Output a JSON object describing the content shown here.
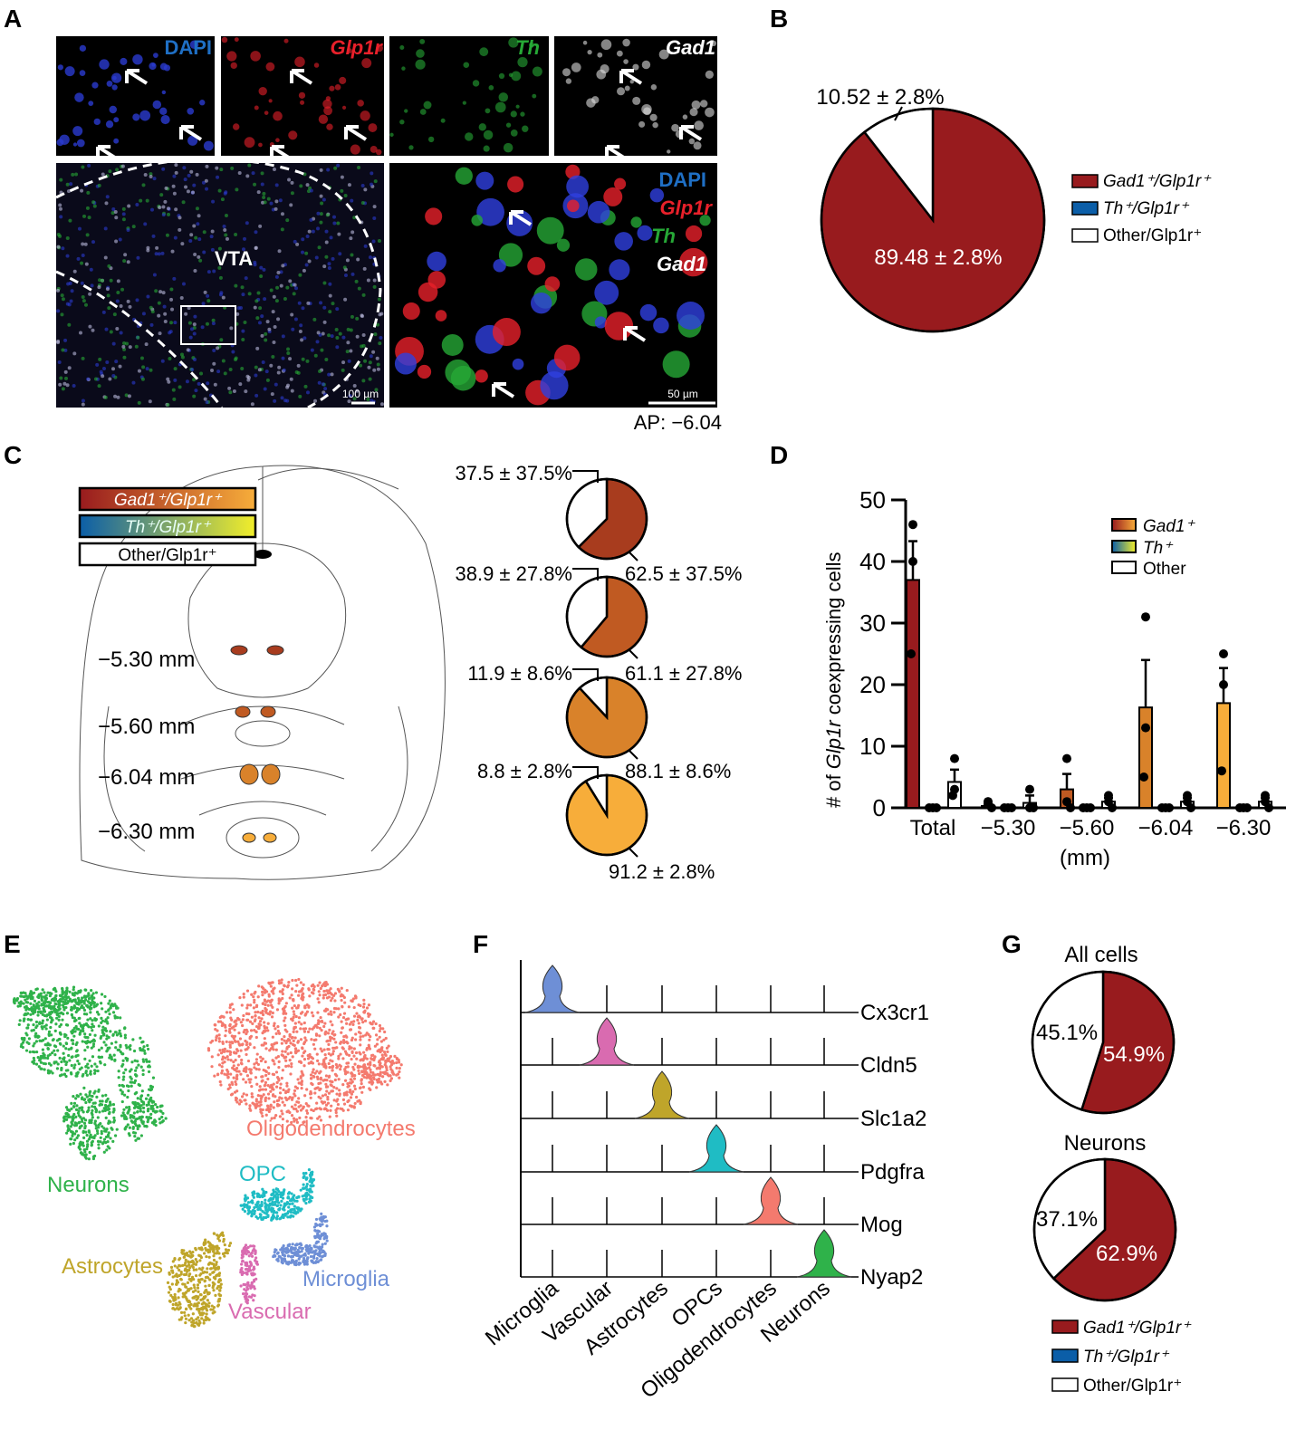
{
  "panel_labels": [
    "A",
    "B",
    "C",
    "D",
    "E",
    "F",
    "G"
  ],
  "panel_a": {
    "channels": [
      {
        "label": "DAPI",
        "color": "#1f6fc4"
      },
      {
        "label": "Glp1r",
        "color": "#e8202a"
      },
      {
        "label": "Th",
        "color": "#26a836"
      },
      {
        "label": "Gad1",
        "color": "#ffffff"
      }
    ],
    "region_label": "VTA",
    "scale_left": "100 µm",
    "scale_right": "50 µm",
    "ap_label": "AP: −6.04"
  },
  "chart_data": [
    {
      "panel": "B",
      "type": "pie",
      "slices": [
        {
          "name": "Gad1⁺/Glp1r⁺",
          "value": 89.48,
          "label": "89.48 ± 2.8%",
          "color": "#981b1e"
        },
        {
          "name": "Other/Glp1r⁺",
          "value": 10.52,
          "label": "10.52 ± 2.8%",
          "color": "#ffffff"
        }
      ],
      "legend": [
        {
          "label": "Gad1⁺/Glp1r⁺",
          "color": "#981b1e"
        },
        {
          "label": "Th⁺/Glp1r⁺",
          "color": "#0b5ea8"
        },
        {
          "label": "Other/Glp1r⁺",
          "color": "#ffffff"
        }
      ],
      "legend_placement": "right"
    },
    {
      "panel": "C",
      "type": "pie",
      "legend": [
        {
          "label": "Gad1⁺/Glp1r⁺",
          "gradient": [
            "#981b1e",
            "#f7ad3a"
          ]
        },
        {
          "label": "Th⁺/Glp1r⁺",
          "gradient": [
            "#0b5ea8",
            "#f2ee2a"
          ]
        },
        {
          "label": "Other/Glp1r⁺",
          "gradient": [
            "#ffffff",
            "#ffffff"
          ]
        }
      ],
      "sections": [
        {
          "level": "−5.30 mm",
          "gad1": 62.5,
          "gad1_label": "62.5 ± 37.5%",
          "other": 37.5,
          "other_label": "37.5 ± 37.5%",
          "color": "#a83c1e"
        },
        {
          "level": "−5.60 mm",
          "gad1": 61.1,
          "gad1_label": "61.1 ± 27.8%",
          "other": 38.9,
          "other_label": "38.9 ± 27.8%",
          "color": "#c05a22"
        },
        {
          "level": "−6.04 mm",
          "gad1": 88.1,
          "gad1_label": "88.1 ± 8.6%",
          "other": 11.9,
          "other_label": "11.9 ± 8.6%",
          "color": "#d9822a"
        },
        {
          "level": "−6.30 mm",
          "gad1": 91.2,
          "gad1_label": "91.2 ± 2.8%",
          "other": 8.8,
          "other_label": "8.8 ± 2.8%",
          "color": "#f7ad3a"
        }
      ]
    },
    {
      "panel": "D",
      "type": "bar",
      "ylabel_prefix": "# of ",
      "ylabel_gene": "Glp1r",
      "ylabel_suffix": " coexpressing cells",
      "xlabel": "(mm)",
      "ylim": [
        0,
        50
      ],
      "yticks": [
        "0",
        "10",
        "20",
        "30",
        "40",
        "50"
      ],
      "categories": [
        "Total",
        "−5.30",
        "−5.60",
        "−6.04",
        "−6.30"
      ],
      "gad1_colors": [
        "#981b1e",
        "#a83c1e",
        "#c05a22",
        "#d9822a",
        "#f7ad3a"
      ],
      "series": [
        {
          "name": "Gad1⁺",
          "values": [
            37,
            0.3,
            3,
            16.3,
            17
          ],
          "sem": [
            6.3,
            0.3,
            2.5,
            7.7,
            5.7
          ],
          "points": [
            [
              46,
              40,
              25
            ],
            [
              1,
              1,
              0
            ],
            [
              8,
              1,
              0
            ],
            [
              31,
              13,
              5
            ],
            [
              25,
              20,
              6
            ]
          ]
        },
        {
          "name": "Th⁺",
          "values": [
            0,
            0,
            0,
            0,
            0
          ],
          "sem": [
            0,
            0,
            0,
            0,
            0
          ],
          "points": [
            [
              0,
              0,
              0
            ],
            [
              0,
              0,
              0
            ],
            [
              0,
              0,
              0
            ],
            [
              0,
              0,
              0
            ],
            [
              0,
              0,
              0
            ]
          ]
        },
        {
          "name": "Other",
          "values": [
            4.2,
            0.8,
            1,
            1,
            1
          ],
          "sem": [
            2,
            1.2,
            0.6,
            0.6,
            0.6
          ],
          "points": [
            [
              8,
              3,
              2
            ],
            [
              3,
              0,
              0
            ],
            [
              2,
              1,
              0
            ],
            [
              2,
              1,
              0
            ],
            [
              2,
              1,
              0
            ]
          ]
        }
      ],
      "legend": [
        {
          "label": "Gad1⁺",
          "gradient": [
            "#981b1e",
            "#f7ad3a"
          ]
        },
        {
          "label": "Th⁺",
          "gradient": [
            "#0b5ea8",
            "#f2ee2a"
          ]
        },
        {
          "label": "Other",
          "gradient": [
            "#ffffff",
            "#ffffff"
          ]
        }
      ],
      "legend_placement": "top-right"
    },
    {
      "panel": "E",
      "type": "scatter",
      "clusters": [
        {
          "name": "Neurons",
          "color": "#2fb24a"
        },
        {
          "name": "Oligodendrocytes",
          "color": "#f47a6e"
        },
        {
          "name": "OPC",
          "color": "#1fbcc4"
        },
        {
          "name": "Astrocytes",
          "color": "#bfa52a"
        },
        {
          "name": "Vascular",
          "color": "#d96bb0"
        },
        {
          "name": "Microglia",
          "color": "#6e8fd6"
        }
      ]
    },
    {
      "panel": "F",
      "type": "violin",
      "genes": [
        "Cx3cr1",
        "Cldn5",
        "Slc1a2",
        "Pdgfra",
        "Mog",
        "Nyap2"
      ],
      "cell_types": [
        "Microglia",
        "Vascular",
        "Astrocytes",
        "OPCs",
        "Oligodendrocytes",
        "Neurons"
      ],
      "colors": [
        "#6e8fd6",
        "#d96bb0",
        "#bfa52a",
        "#1fbcc4",
        "#f47a6e",
        "#2fb24a"
      ]
    },
    {
      "panel": "G",
      "type": "pie",
      "pies": [
        {
          "title": "All cells",
          "gad1": 54.9,
          "gad1_label": "54.9%",
          "other": 45.1,
          "other_label": "45.1%"
        },
        {
          "title": "Neurons",
          "gad1": 62.9,
          "gad1_label": "62.9%",
          "other": 37.1,
          "other_label": "37.1%"
        }
      ],
      "legend": [
        {
          "label": "Gad1⁺/Glp1r⁺",
          "color": "#981b1e"
        },
        {
          "label": "Th⁺/Glp1r⁺",
          "color": "#0b5ea8"
        },
        {
          "label": "Other/Glp1r⁺",
          "color": "#ffffff"
        }
      ],
      "legend_placement": "bottom"
    }
  ]
}
